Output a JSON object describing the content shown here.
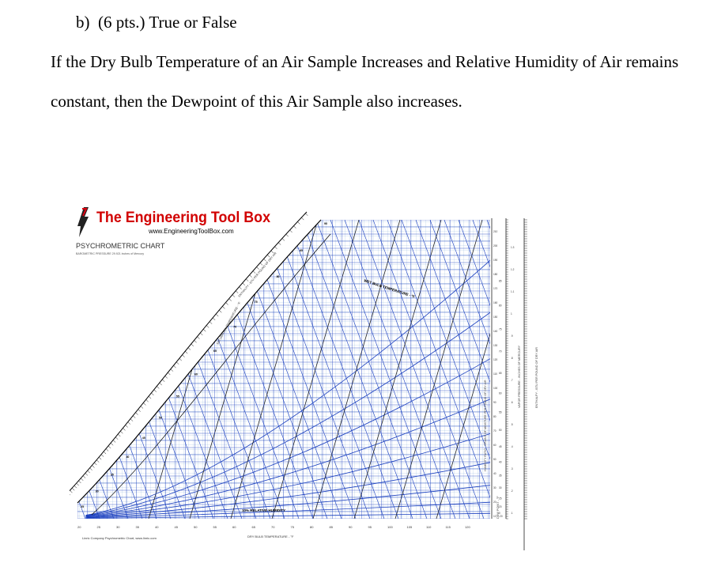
{
  "question": {
    "label": "b)",
    "points": "(6 pts.) True or False",
    "text_line1": "If the Dry Bulb Temperature of an Air Sample Increases and Relative Humidity of Air remains",
    "text_line2": "constant, then the Dewpoint of this Air Sample also increases."
  },
  "figure": {
    "brand": "The Engineering Tool Box",
    "url": "www.EngineeringToolBox.com",
    "title": "PSYCHROMETRIC CHART",
    "subtitle": "BAROMETRIC PRESSURE 29.921 inches of Mercury",
    "footer": "Linric Company Psychrometric Chart, www.linric.com",
    "axes": {
      "dry_bulb_label": "DRY BULB TEMPERATURE - °F",
      "humidity_ratio_label": "HUMIDITY RATIO - GRAINS OF MOISTURE PER POUND OF DRY AIR",
      "dew_point_label": "DEW POINT - °F",
      "enthalpy_label": "ENTHALPY - BTU PER POUND OF DRY AIR",
      "saturation_label": "SATURATION TEMPERATURE - °F",
      "wet_bulb_label": "WET BULB TEMPERATURE - °F",
      "relative_humidity_label": "10% RELATIVE HUMIDITY",
      "vapor_pressure_label": "VAPOR PRESSURE - INCHES OF MERCURY",
      "dry_bulb_ticks": [
        "20",
        "25",
        "30",
        "35",
        "40",
        "45",
        "50",
        "55",
        "60",
        "65",
        "70",
        "75",
        "80",
        "85",
        "90",
        "95",
        "100",
        "105",
        "110",
        "115",
        "120"
      ],
      "humidity_ratio_ticks": [
        "10",
        "20",
        "30",
        "40",
        "50",
        "60",
        "70",
        "80",
        "90",
        "100",
        "110",
        "120",
        "130",
        "140",
        "150",
        "160",
        "170",
        "180",
        "190",
        "200",
        "210"
      ],
      "dew_point_ticks": [
        "-20",
        "0",
        "20",
        "25",
        "30",
        "35",
        "40",
        "45",
        "50",
        "55",
        "60",
        "65",
        "70",
        "75",
        "80",
        "85"
      ],
      "vapor_pressure_ticks": [
        ".1",
        ".2",
        ".3",
        ".4",
        ".5",
        ".6",
        ".7",
        ".8",
        ".9",
        "1",
        "1.1",
        "1.2",
        "1.3"
      ],
      "saturation_ticks": [
        "25",
        "30",
        "35",
        "40",
        "45",
        "50",
        "55",
        "60",
        "65",
        "70",
        "75",
        "80",
        "85",
        "90"
      ]
    }
  }
}
